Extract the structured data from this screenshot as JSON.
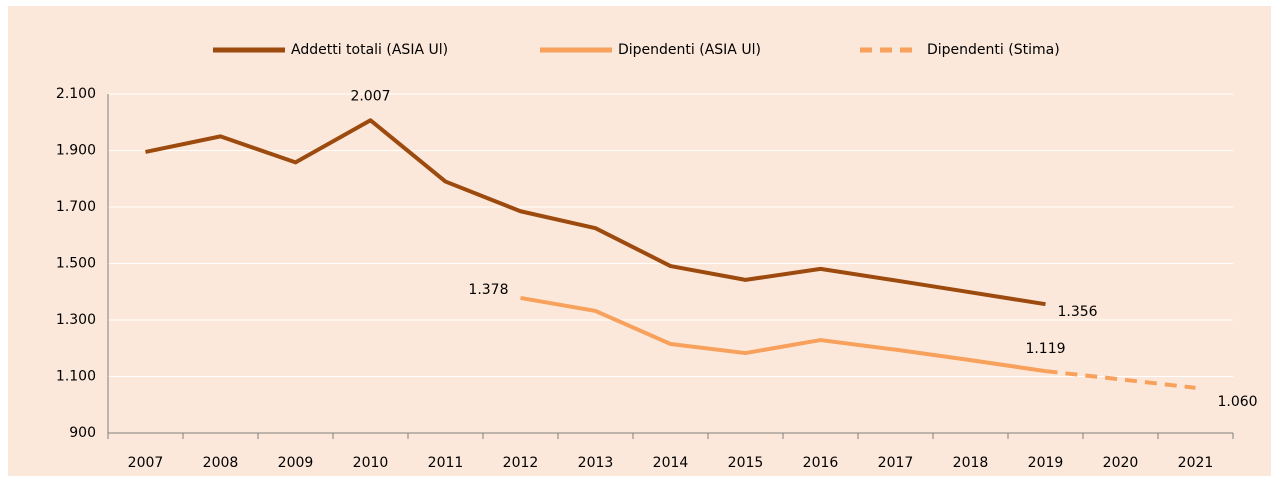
{
  "chart_data": {
    "type": "line",
    "categories": [
      "2007",
      "2008",
      "2009",
      "2010",
      "2011",
      "2012",
      "2013",
      "2014",
      "2015",
      "2016",
      "2017",
      "2018",
      "2019",
      "2020",
      "2021"
    ],
    "series": [
      {
        "name": "Addetti totali (ASIA Ul)",
        "color": "#9c4a0e",
        "dashed": false,
        "values": [
          1895,
          1950,
          1858,
          2007,
          1790,
          1685,
          1625,
          1491,
          1442,
          1481,
          1440,
          1398,
          1356,
          null,
          null
        ],
        "value_labels": [
          null,
          null,
          null,
          "2.007",
          null,
          null,
          null,
          null,
          null,
          null,
          null,
          null,
          "1.356",
          null,
          null
        ]
      },
      {
        "name": "Dipendenti (ASIA Ul)",
        "color": "#f7a15c",
        "dashed": false,
        "values": [
          null,
          null,
          null,
          null,
          null,
          1378,
          1332,
          1215,
          1183,
          1229,
          1195,
          1158,
          1119,
          null,
          null
        ],
        "value_labels": [
          null,
          null,
          null,
          null,
          null,
          "1.378",
          null,
          null,
          null,
          null,
          null,
          null,
          "1.119",
          null,
          null
        ]
      },
      {
        "name": "Dipendenti (Stima)",
        "color": "#f7a15c",
        "dashed": true,
        "values": [
          null,
          null,
          null,
          null,
          null,
          null,
          null,
          null,
          null,
          null,
          null,
          null,
          1119,
          1090,
          1060
        ],
        "value_labels": [
          null,
          null,
          null,
          null,
          null,
          null,
          null,
          null,
          null,
          null,
          null,
          null,
          null,
          null,
          "1.060"
        ]
      }
    ],
    "ylim": [
      900,
      2100
    ],
    "yticks": [
      900,
      {
        "value": 1100,
        "label": "1.100"
      },
      {
        "value": 1300,
        "label": "1.300"
      },
      {
        "value": 1500,
        "label": "1.500"
      },
      {
        "value": 1700,
        "label": "1.700"
      },
      {
        "value": 1900,
        "label": "1.900"
      },
      {
        "value": 2100,
        "label": "2.100"
      }
    ],
    "grid": true,
    "legend": "top"
  }
}
